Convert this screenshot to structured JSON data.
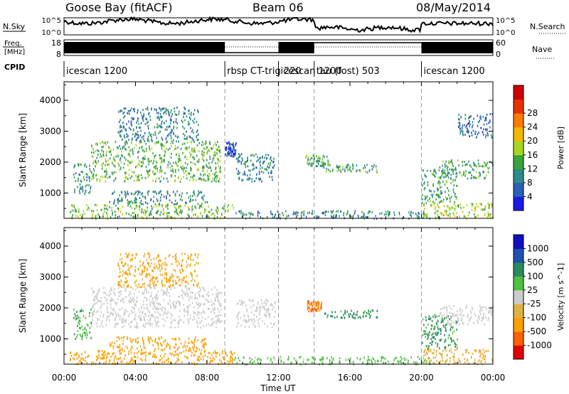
{
  "header": {
    "radar": "Goose Bay (fitACF)",
    "beam": "Beam 06",
    "date": "08/May/2014"
  },
  "noise_panel": {
    "left_label": "N.Sky",
    "left_ticks": [
      "10^5",
      "10^0"
    ],
    "right_label": "N.Search",
    "right_ticks": [
      "10^5",
      "10^0"
    ]
  },
  "freq_panel": {
    "left_label_1": "Freq.",
    "left_label_2": "[MHz]",
    "left_ticks": [
      "18",
      "8"
    ],
    "right_label": "Nave",
    "right_ticks": [
      "60",
      "0"
    ]
  },
  "cpid": {
    "label": "CPID",
    "segments": [
      {
        "name": "icescan 1200",
        "start_h": 0,
        "end_h": 9
      },
      {
        "name": "rbsp CT-trig 220",
        "start_h": 9,
        "end_h": 12
      },
      {
        "name": "icescan 1200",
        "start_h": 12,
        "end_h": 14
      },
      {
        "name": "tau (fost) 503",
        "start_h": 14,
        "end_h": 20
      },
      {
        "name": "icescan 1200",
        "start_h": 20,
        "end_h": 24
      }
    ]
  },
  "x_axis": {
    "label": "Time UT",
    "ticks": [
      "00:00",
      "04:00",
      "08:00",
      "12:00",
      "16:00",
      "20:00",
      "00:00"
    ]
  },
  "colors": {
    "power": [
      "#1a1ae6",
      "#2c5fb8",
      "#2f8a8a",
      "#3aa43a",
      "#a8d620",
      "#f2b800",
      "#ff7a00",
      "#e63000",
      "#d00000"
    ],
    "velocity": [
      "#e00000",
      "#ff6000",
      "#ffa000",
      "#e0b040",
      "#cccccc",
      "#50c040",
      "#2a8a5a",
      "#2050b0",
      "#1010c0"
    ]
  },
  "chart_data": [
    {
      "type": "heatmap",
      "title": "",
      "xlabel": "Time UT",
      "ylabel": "Slant Range [km]",
      "xlim": [
        0,
        24
      ],
      "ylim": [
        180,
        4600
      ],
      "y_ticks": [
        "1000",
        "2000",
        "3000",
        "4000"
      ],
      "colorbar": {
        "label": "Power [dB]",
        "range": [
          0,
          32
        ],
        "ticks": [
          "4",
          "8",
          "12",
          "16",
          "20",
          "24",
          "28"
        ]
      },
      "regions": [
        {
          "t0": 0.3,
          "t1": 9.5,
          "r0": 200,
          "r1": 650,
          "value": 14
        },
        {
          "t0": 0.5,
          "t1": 1.5,
          "r0": 1000,
          "r1": 2000,
          "value": 10
        },
        {
          "t0": 1.5,
          "t1": 8.8,
          "r0": 1400,
          "r1": 2700,
          "value": 13
        },
        {
          "t0": 2.5,
          "t1": 8.0,
          "r0": 650,
          "r1": 1100,
          "value": 9
        },
        {
          "t0": 3.0,
          "t1": 7.5,
          "r0": 2700,
          "r1": 3800,
          "value": 8
        },
        {
          "t0": 9.0,
          "t1": 9.6,
          "r0": 2200,
          "r1": 2700,
          "value": 5
        },
        {
          "t0": 9.6,
          "t1": 11.8,
          "r0": 1400,
          "r1": 2300,
          "value": 8
        },
        {
          "t0": 9.5,
          "t1": 20.5,
          "r0": 200,
          "r1": 450,
          "value": 9
        },
        {
          "t0": 14.5,
          "t1": 17.5,
          "r0": 1700,
          "r1": 1950,
          "value": 11
        },
        {
          "t0": 13.5,
          "t1": 14.8,
          "r0": 1900,
          "r1": 2250,
          "value": 12
        },
        {
          "t0": 20.0,
          "t1": 24.0,
          "r0": 200,
          "r1": 700,
          "value": 16
        },
        {
          "t0": 20.0,
          "t1": 22.0,
          "r0": 700,
          "r1": 1800,
          "value": 11
        },
        {
          "t0": 21.0,
          "t1": 24.0,
          "r0": 1500,
          "r1": 2100,
          "value": 12
        },
        {
          "t0": 22.0,
          "t1": 24.0,
          "r0": 2800,
          "r1": 3600,
          "value": 7
        }
      ]
    },
    {
      "type": "heatmap",
      "title": "",
      "xlabel": "Time UT",
      "ylabel": "Slant Range [km]",
      "xlim": [
        0,
        24
      ],
      "ylim": [
        180,
        4600
      ],
      "y_ticks": [
        "1000",
        "2000",
        "3000",
        "4000"
      ],
      "colorbar": {
        "label": "Velocity [m s^-1]",
        "range": [
          -1500,
          1500
        ],
        "ticks": [
          "1000",
          "500",
          "100",
          "25",
          "-25",
          "-100",
          "-500",
          "-1000"
        ]
      },
      "regions": [
        {
          "t0": 0.3,
          "t1": 9.5,
          "r0": 200,
          "r1": 650,
          "value": -200
        },
        {
          "t0": 0.5,
          "t1": 1.5,
          "r0": 1000,
          "r1": 2000,
          "value": 80
        },
        {
          "t0": 1.5,
          "t1": 8.8,
          "r0": 1400,
          "r1": 2700,
          "value": 0
        },
        {
          "t0": 2.5,
          "t1": 8.0,
          "r0": 650,
          "r1": 1100,
          "value": -150
        },
        {
          "t0": 3.0,
          "t1": 7.5,
          "r0": 2700,
          "r1": 3800,
          "value": -120
        },
        {
          "t0": 9.6,
          "t1": 11.8,
          "r0": 1400,
          "r1": 2300,
          "value": 0
        },
        {
          "t0": 9.5,
          "t1": 20.5,
          "r0": 200,
          "r1": 450,
          "value": 50
        },
        {
          "t0": 13.6,
          "t1": 14.4,
          "r0": 1900,
          "r1": 2250,
          "value": -600
        },
        {
          "t0": 14.5,
          "t1": 17.5,
          "r0": 1700,
          "r1": 1950,
          "value": 150
        },
        {
          "t0": 20.0,
          "t1": 24.0,
          "r0": 200,
          "r1": 700,
          "value": -80
        },
        {
          "t0": 20.0,
          "t1": 22.0,
          "r0": 700,
          "r1": 1800,
          "value": 120
        },
        {
          "t0": 21.0,
          "t1": 24.0,
          "r0": 1500,
          "r1": 2100,
          "value": 0
        }
      ]
    }
  ]
}
